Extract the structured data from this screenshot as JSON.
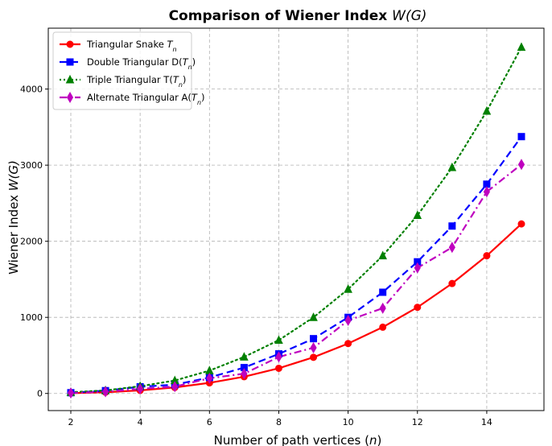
{
  "chart_data": {
    "type": "line",
    "title": "Comparison of Wiener Index W(G)",
    "xlabel": "Number of path vertices (n)",
    "ylabel": "Wiener Index W(G)",
    "xlim": [
      1.35,
      15.65
    ],
    "ylim": [
      -225,
      4800
    ],
    "xticks": [
      2,
      4,
      6,
      8,
      10,
      12,
      14
    ],
    "yticks": [
      0,
      1000,
      2000,
      3000,
      4000
    ],
    "grid": true,
    "legend_position": "top-left",
    "x": [
      2,
      3,
      4,
      5,
      6,
      7,
      8,
      9,
      10,
      11,
      12,
      13,
      14,
      15
    ],
    "series": [
      {
        "name": "Triangular Snake T_n",
        "color": "#ff0000",
        "marker": "circle",
        "linestyle": "solid",
        "values": [
          4,
          16,
          40,
          79,
          139,
          220,
          331,
          475,
          656,
          871,
          1132,
          1445,
          1810,
          2228
        ]
      },
      {
        "name": "Double Triangular D(T_n)",
        "color": "#0000ff",
        "marker": "square",
        "linestyle": "dashed",
        "values": [
          10,
          37,
          88,
          115,
          210,
          340,
          520,
          720,
          1000,
          1330,
          1730,
          2200,
          2750,
          3375
        ]
      },
      {
        "name": "Triple Triangular T(T_n)",
        "color": "#008000",
        "marker": "triangle",
        "linestyle": "dotted",
        "values": [
          16,
          40,
          95,
          170,
          300,
          480,
          700,
          1000,
          1370,
          1810,
          2340,
          2970,
          3710,
          4550
        ]
      },
      {
        "name": "Alternate Triangular A(T_n)",
        "color": "#bf00bf",
        "marker": "thin_diamond",
        "linestyle": "dashdot",
        "values": [
          6,
          22,
          60,
          90,
          200,
          260,
          480,
          600,
          960,
          1120,
          1650,
          1920,
          2650,
          3010
        ]
      }
    ]
  }
}
